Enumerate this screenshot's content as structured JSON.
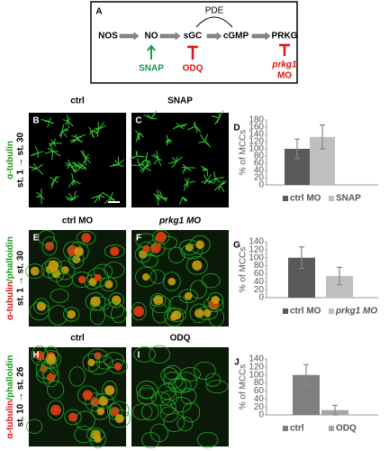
{
  "panels": [
    "A",
    "B",
    "C",
    "D",
    "E",
    "F",
    "G",
    "H",
    "I",
    "J"
  ],
  "pathway": {
    "nodes": [
      "NOS",
      "NO",
      "sGC",
      "cGMP",
      "PRKG"
    ],
    "pde": "PDE",
    "activator": "SNAP",
    "inhibitor": "ODQ",
    "morpholino": [
      "prkg1",
      "MO"
    ]
  },
  "rows": [
    {
      "titles": [
        "ctrl",
        "SNAP"
      ],
      "stain": [
        "α-tubulin"
      ],
      "stage": "st. 1 → st. 30"
    },
    {
      "titles": [
        "ctrl MO",
        "prkg1 MO"
      ],
      "stain": [
        "α-tubulin",
        "/phalloidin"
      ],
      "stage": "st. 1 → st. 30"
    },
    {
      "titles": [
        "ctrl",
        "ODQ"
      ],
      "stain": [
        "α-tubulin",
        "/phalloidin"
      ],
      "stage": "st. 10 → st. 26"
    }
  ],
  "chart_data": [
    {
      "type": "bar",
      "ylabel": "% of MCCs",
      "ylim": [
        0,
        180
      ],
      "yticks": [
        0,
        20,
        40,
        60,
        80,
        100,
        120,
        140,
        160,
        180
      ],
      "series": [
        {
          "name": "ctrl MO",
          "color": "#595959",
          "values": [
            100
          ],
          "errors": [
            27
          ]
        },
        {
          "name": "SNAP",
          "color": "#bfbfbf",
          "values": [
            133
          ],
          "errors": [
            33
          ]
        }
      ]
    },
    {
      "type": "bar",
      "ylabel": "% of MCCs",
      "ylim": [
        0,
        140
      ],
      "yticks": [
        0,
        20,
        40,
        60,
        80,
        100,
        120,
        140
      ],
      "series": [
        {
          "name": "ctrl MO",
          "color": "#595959",
          "values": [
            100
          ],
          "errors": [
            27
          ]
        },
        {
          "name": "prkg1 MO",
          "color": "#bfbfbf",
          "values": [
            54
          ],
          "errors": [
            22
          ]
        }
      ]
    },
    {
      "type": "bar",
      "ylabel": "% of MCCs",
      "ylim": [
        0,
        140
      ],
      "yticks": [
        0,
        20,
        40,
        60,
        80,
        100,
        120,
        140
      ],
      "series": [
        {
          "name": "ctrl",
          "color": "#7f7f7f",
          "values": [
            100
          ],
          "errors": [
            26
          ]
        },
        {
          "name": "ODQ",
          "color": "#a6a6a6",
          "values": [
            12
          ],
          "errors": [
            12
          ]
        }
      ]
    }
  ]
}
